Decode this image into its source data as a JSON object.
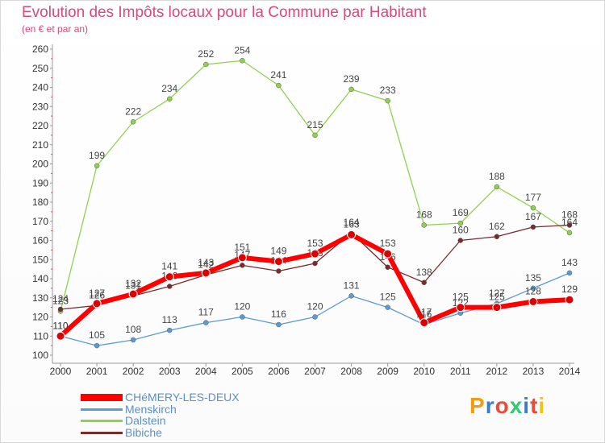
{
  "header": {
    "title": "Evolution des Impôts locaux pour la Commune par Habitant",
    "subtitle": "(en € et par an)"
  },
  "logo": {
    "text": "Proxiti",
    "colors": [
      "#f39c12",
      "#3b7dc4",
      "#e74c3c",
      "#2ecc71",
      "#3b7dc4",
      "#e74c3c",
      "#f1c40f"
    ]
  },
  "chart_data": {
    "type": "line",
    "title": "Evolution des Impôts locaux pour la Commune par Habitant",
    "subtitle": "(en € et par an)",
    "xlabel": "",
    "ylabel": "",
    "x": [
      2000,
      2001,
      2002,
      2003,
      2004,
      2005,
      2006,
      2007,
      2008,
      2009,
      2010,
      2011,
      2012,
      2013,
      2014
    ],
    "ylim": [
      100,
      260
    ],
    "yticks": [
      100,
      110,
      120,
      130,
      140,
      150,
      160,
      170,
      180,
      190,
      200,
      210,
      220,
      230,
      240,
      250,
      260
    ],
    "grid": false,
    "legend_position": "bottom-left",
    "series": [
      {
        "name": "Menskirch",
        "color": "#5b9bd5",
        "values": [
          110,
          105,
          108,
          113,
          117,
          120,
          116,
          120,
          131,
          125,
          116,
          122,
          127,
          135,
          143
        ],
        "labels": [
          "110",
          "105",
          "108",
          "113",
          "117",
          "120",
          "116",
          "120",
          "131",
          "125",
          "116",
          "122",
          "127",
          "135",
          "143"
        ]
      },
      {
        "name": "Dalstein",
        "color": "#8fd14f",
        "values": [
          123,
          199,
          222,
          234,
          252,
          254,
          241,
          215,
          239,
          233,
          168,
          169,
          188,
          177,
          164
        ],
        "labels": [
          "123",
          "199",
          "222",
          "234",
          "252",
          "254",
          "241",
          "215",
          "239",
          "233",
          "168",
          "169",
          "188",
          "177",
          "164"
        ]
      },
      {
        "name": "Bibiche",
        "color": "#7a2a2a",
        "values": [
          124,
          126,
          131,
          136,
          142,
          147,
          144,
          148,
          164,
          146,
          138,
          160,
          162,
          167,
          168
        ],
        "labels": [
          "124",
          "126",
          "131",
          "136",
          "142",
          "147",
          "144",
          "148",
          "164",
          "146",
          "138",
          "160",
          "162",
          "167",
          "168"
        ]
      },
      {
        "name": "CHéMERY-LES-DEUX",
        "color": "#ff0000",
        "values": [
          110,
          127,
          132,
          141,
          143,
          151,
          149,
          153,
          163,
          153,
          117,
          125,
          125,
          128,
          129
        ],
        "labels": [
          "110",
          "127",
          "132",
          "141",
          "143",
          "151",
          "149",
          "153",
          "163",
          "153",
          "117",
          "125",
          "125",
          "128",
          "129"
        ]
      }
    ],
    "legend_order": [
      "CHéMERY-LES-DEUX",
      "Menskirch",
      "Dalstein",
      "Bibiche"
    ]
  }
}
